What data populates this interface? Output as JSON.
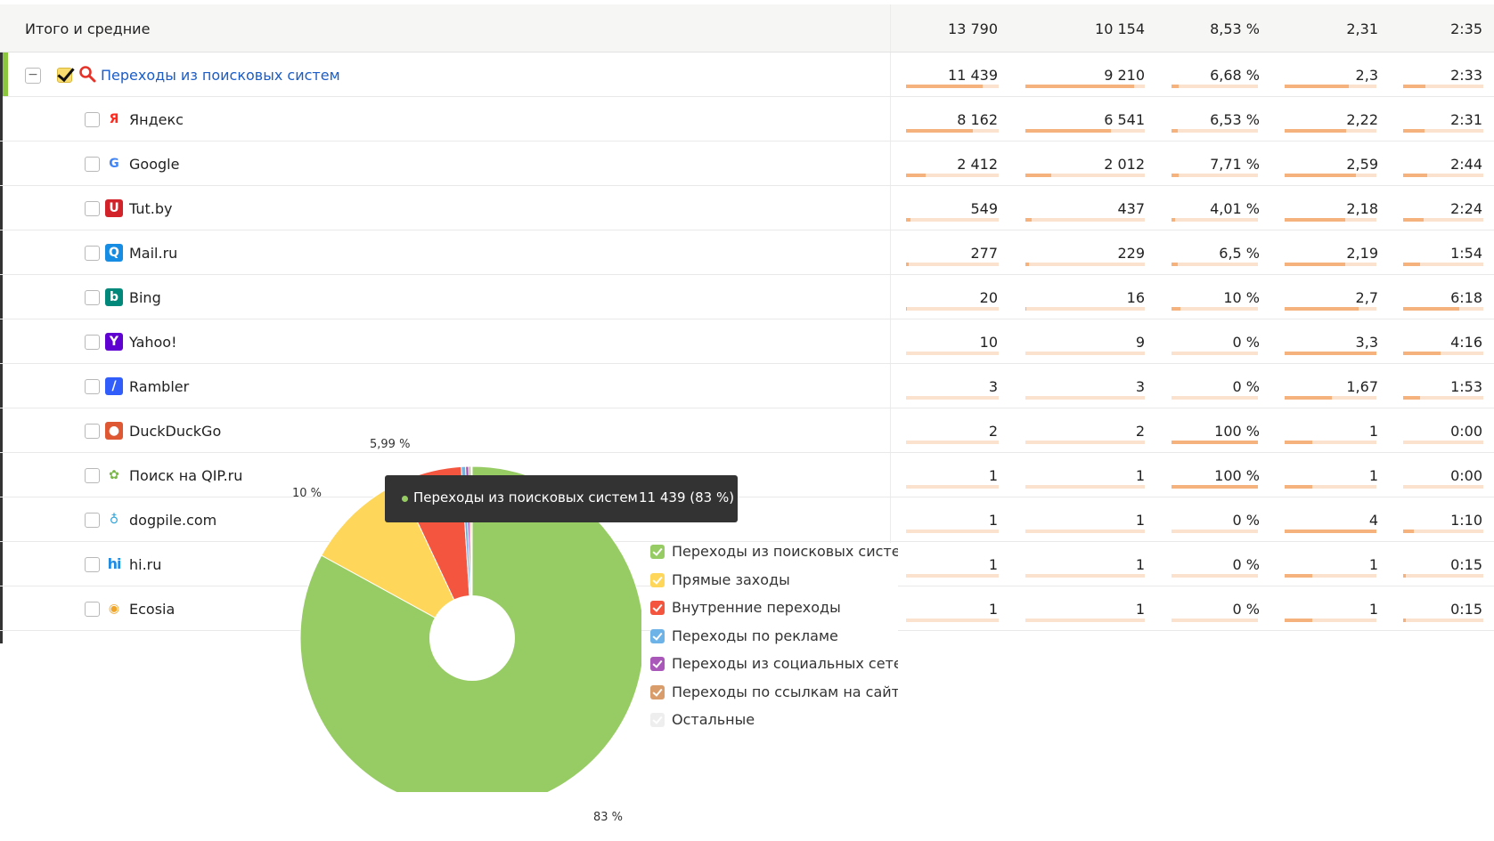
{
  "total_row": {
    "label": "Итого и средние",
    "values": [
      "13 790",
      "10 154",
      "8,53 %",
      "2,31",
      "2:35"
    ]
  },
  "group_row": {
    "label": "Переходы из поисковых систем",
    "values": [
      "11 439",
      "9 210",
      "6,68 %",
      "2,3",
      "2:33"
    ],
    "bars": [
      0.83,
      0.91,
      0.08,
      0.7,
      0.28
    ]
  },
  "rows": [
    {
      "label": "Яндекс",
      "icon": "yandex-icon",
      "icon_glyph": "Я",
      "icon_color": "#ffffff",
      "icon_text_color": "#ff2a1f",
      "values": [
        "8 162",
        "6 541",
        "6,53 %",
        "2,22",
        "2:31"
      ],
      "bars": [
        0.72,
        0.72,
        0.07,
        0.67,
        0.27
      ]
    },
    {
      "label": "Google",
      "icon": "google-icon",
      "icon_glyph": "G",
      "icon_color": "#ffffff",
      "icon_text_color": "#4285f4",
      "values": [
        "2 412",
        "2 012",
        "7,71 %",
        "2,59",
        "2:44"
      ],
      "bars": [
        0.21,
        0.22,
        0.08,
        0.78,
        0.3
      ]
    },
    {
      "label": "Tut.by",
      "icon": "tutby-icon",
      "icon_glyph": "U",
      "icon_color": "#d3232a",
      "icon_text_color": "#ffffff",
      "values": [
        "549",
        "437",
        "4,01 %",
        "2,18",
        "2:24"
      ],
      "bars": [
        0.05,
        0.05,
        0.04,
        0.66,
        0.26
      ]
    },
    {
      "label": "Mail.ru",
      "icon": "mailru-icon",
      "icon_glyph": "Q",
      "icon_color": "#168de2",
      "icon_text_color": "#ffffff",
      "values": [
        "277",
        "229",
        "6,5 %",
        "2,19",
        "1:54"
      ],
      "bars": [
        0.03,
        0.03,
        0.07,
        0.66,
        0.21
      ]
    },
    {
      "label": "Bing",
      "icon": "bing-icon",
      "icon_glyph": "b",
      "icon_color": "#00897b",
      "icon_text_color": "#ffffff",
      "values": [
        "20",
        "16",
        "10 %",
        "2,7",
        "6:18"
      ],
      "bars": [
        0.01,
        0.01,
        0.1,
        0.81,
        0.7
      ]
    },
    {
      "label": "Yahoo!",
      "icon": "yahoo-icon",
      "icon_glyph": "Y",
      "icon_color": "#5f01d1",
      "icon_text_color": "#ffffff",
      "values": [
        "10",
        "9",
        "0 %",
        "3,3",
        "4:16"
      ],
      "bars": [
        0,
        0,
        0,
        1.0,
        0.47
      ]
    },
    {
      "label": "Rambler",
      "icon": "rambler-icon",
      "icon_glyph": "/",
      "icon_color": "#315efb",
      "icon_text_color": "#ffffff",
      "values": [
        "3",
        "3",
        "0 %",
        "1,67",
        "1:53"
      ],
      "bars": [
        0,
        0,
        0,
        0.51,
        0.21
      ]
    },
    {
      "label": "DuckDuckGo",
      "icon": "duckduckgo-icon",
      "icon_glyph": "●",
      "icon_color": "#de5833",
      "icon_text_color": "#ffffff",
      "values": [
        "2",
        "2",
        "100 %",
        "1",
        "0:00"
      ],
      "bars": [
        0,
        0,
        1.0,
        0.3,
        0
      ]
    },
    {
      "label": "Поиск на QIP.ru",
      "icon": "qip-icon",
      "icon_glyph": "✿",
      "icon_color": "#ffffff",
      "icon_text_color": "#7ab648",
      "values": [
        "1",
        "1",
        "100 %",
        "1",
        "0:00"
      ],
      "bars": [
        0,
        0,
        1.0,
        0.3,
        0
      ]
    },
    {
      "label": "dogpile.com",
      "icon": "dogpile-icon",
      "icon_glyph": "♁",
      "icon_color": "#ffffff",
      "icon_text_color": "#33a6dc",
      "values": [
        "1",
        "1",
        "0 %",
        "4",
        "1:10"
      ],
      "bars": [
        0,
        0,
        0,
        1.0,
        0.13
      ]
    },
    {
      "label": "hi.ru",
      "icon": "hiru-icon",
      "icon_glyph": "hi",
      "icon_color": "#ffffff",
      "icon_text_color": "#1f8be3",
      "values": [
        "1",
        "1",
        "0 %",
        "1",
        "0:15"
      ],
      "bars": [
        0,
        0,
        0,
        0.3,
        0.03
      ]
    },
    {
      "label": "Ecosia",
      "icon": "ecosia-icon",
      "icon_glyph": "◉",
      "icon_color": "#ffffff",
      "icon_text_color": "#f0a52a",
      "values": [
        "1",
        "1",
        "0 %",
        "1",
        "0:15"
      ],
      "bars": [
        0,
        0,
        0,
        0.3,
        0.03
      ]
    }
  ],
  "chart_data": {
    "type": "pie",
    "slices": [
      {
        "name": "Переходы из поисковых систем",
        "value": 83,
        "color": "#97cc64"
      },
      {
        "name": "Прямые заходы",
        "value": 10,
        "color": "#fed75a"
      },
      {
        "name": "Внутренние переходы",
        "value": 5.99,
        "color": "#f4553f"
      },
      {
        "name": "Переходы по рекламе",
        "value": 0.4,
        "color": "#6db3e8"
      },
      {
        "name": "Переходы из социальных сетей",
        "value": 0.3,
        "color": "#a957b8"
      },
      {
        "name": "Переходы по ссылкам на сайтах",
        "value": 0.2,
        "color": "#d99c6b"
      },
      {
        "name": "Остальные",
        "value": 0.11,
        "color": "#eeeeee"
      }
    ],
    "slice_labels": [
      "83 %",
      "10 %",
      "5,99 %"
    ],
    "donut": true
  },
  "legend": [
    {
      "label": "Переходы из поисковых систем",
      "color": "#97cc64"
    },
    {
      "label": "Прямые заходы",
      "color": "#fed75a"
    },
    {
      "label": "Внутренние переходы",
      "color": "#f4553f"
    },
    {
      "label": "Переходы по рекламе",
      "color": "#6db3e8"
    },
    {
      "label": "Переходы из социальных сетей",
      "color": "#a957b8"
    },
    {
      "label": "Переходы по ссылкам на сайтах",
      "color": "#d99c6b"
    },
    {
      "label": "Остальные",
      "color": "#eeeeee"
    }
  ],
  "tooltip": {
    "label": "Переходы из поисковых систем",
    "value": "11 439 (83 %)",
    "color": "#97cc64"
  }
}
